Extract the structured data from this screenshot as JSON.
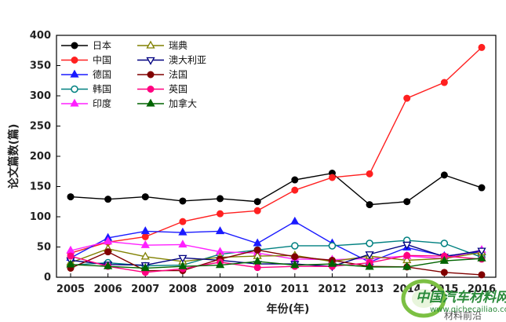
{
  "chart_data": {
    "type": "line",
    "xlabel": "年份(年)",
    "ylabel": "论文篇数(篇)",
    "ylim": [
      0,
      400
    ],
    "yticks": [
      0,
      50,
      100,
      150,
      200,
      250,
      300,
      350,
      400
    ],
    "categories": [
      "2005",
      "2006",
      "2007",
      "2008",
      "2009",
      "2010",
      "2011",
      "2012",
      "2013",
      "2014",
      "2015",
      "2016"
    ],
    "legend_placement": "top-left",
    "grid": false,
    "series": [
      {
        "name": "日本",
        "color": "#000000",
        "marker": "circle",
        "values": [
          133,
          129,
          133,
          126,
          130,
          125,
          161,
          172,
          120,
          125,
          169,
          148
        ]
      },
      {
        "name": "中国",
        "color": "#ff2020",
        "marker": "circle",
        "values": [
          40,
          58,
          67,
          92,
          105,
          110,
          144,
          165,
          171,
          296,
          322,
          380
        ]
      },
      {
        "name": "德国",
        "color": "#1a1aff",
        "marker": "triangle-up",
        "values": [
          32,
          65,
          76,
          74,
          76,
          56,
          92,
          56,
          25,
          49,
          35,
          42
        ]
      },
      {
        "name": "韩国",
        "color": "#008080",
        "marker": "circle-open",
        "values": [
          20,
          24,
          19,
          20,
          38,
          45,
          52,
          52,
          56,
          61,
          56,
          33
        ]
      },
      {
        "name": "印度",
        "color": "#ff20ff",
        "marker": "triangle-up",
        "values": [
          44,
          59,
          53,
          54,
          42,
          40,
          30,
          29,
          31,
          35,
          31,
          45
        ]
      },
      {
        "name": "瑞典",
        "color": "#808000",
        "marker": "triangle-up-open",
        "values": [
          24,
          47,
          34,
          26,
          33,
          35,
          36,
          26,
          35,
          28,
          31,
          41
        ]
      },
      {
        "name": "澳大利亚",
        "color": "#000080",
        "marker": "triangle-down-open",
        "values": [
          28,
          21,
          20,
          32,
          28,
          22,
          22,
          18,
          38,
          54,
          34,
          44
        ]
      },
      {
        "name": "法国",
        "color": "#800000",
        "marker": "circle",
        "values": [
          15,
          42,
          11,
          11,
          30,
          45,
          34,
          28,
          18,
          17,
          8,
          4
        ]
      },
      {
        "name": "英国",
        "color": "#ff0080",
        "marker": "circle",
        "values": [
          35,
          18,
          8,
          14,
          25,
          16,
          18,
          18,
          24,
          36,
          35,
          30
        ]
      },
      {
        "name": "加拿大",
        "color": "#006400",
        "marker": "triangle-up",
        "values": [
          21,
          18,
          15,
          18,
          20,
          26,
          20,
          22,
          17,
          17,
          27,
          31
        ]
      }
    ]
  },
  "watermark": {
    "main": "中国汽车材料网",
    "sub": "www.qichecailiao.com",
    "tag": "材料前沿"
  }
}
